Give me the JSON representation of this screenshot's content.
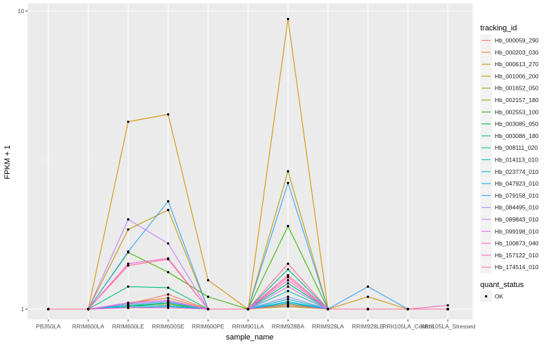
{
  "chart_data": {
    "type": "line",
    "xlabel": "sample_name",
    "ylabel": "FPKM + 1",
    "y_scale": "log10",
    "ylim": [
      1,
      10
    ],
    "y_ticks": [
      1,
      10
    ],
    "grid": true,
    "legend_position": "right",
    "categories": [
      "PB350LA",
      "RRIM600LA",
      "RRIM600LE",
      "RRIM600SE",
      "RRIM600PE",
      "RRIM901LA",
      "RRIM928BA",
      "RRIM928LA",
      "RRIM928LE",
      "RRII105LA_Control",
      "RRII105LA_Stressed"
    ],
    "legend_color": {
      "title": "tracking_id",
      "items": [
        {
          "label": "Hb_000059_290",
          "color": "#F8766D"
        },
        {
          "label": "Hb_000203_030",
          "color": "#EA8331"
        },
        {
          "label": "Hb_000613_270",
          "color": "#D89000"
        },
        {
          "label": "Hb_001006_200",
          "color": "#C09B00"
        },
        {
          "label": "Hb_001652_050",
          "color": "#A3A500"
        },
        {
          "label": "Hb_002157_180",
          "color": "#7CAE00"
        },
        {
          "label": "Hb_002553_100",
          "color": "#39B600"
        },
        {
          "label": "Hb_003085_050",
          "color": "#00BB4E"
        },
        {
          "label": "Hb_003086_180",
          "color": "#00BF7D"
        },
        {
          "label": "Hb_008111_020",
          "color": "#00C1A3"
        },
        {
          "label": "Hb_014113_010",
          "color": "#00BFC4"
        },
        {
          "label": "Hb_023774_010",
          "color": "#00BAE0"
        },
        {
          "label": "Hb_047923_010",
          "color": "#00B0F6"
        },
        {
          "label": "Hb_079158_010",
          "color": "#35A2FF"
        },
        {
          "label": "Hb_084495_010",
          "color": "#9590FF"
        },
        {
          "label": "Hb_089843_010",
          "color": "#C77CFF"
        },
        {
          "label": "Hb_099198_010",
          "color": "#E76BF3"
        },
        {
          "label": "Hb_100873_040",
          "color": "#FA62DB"
        },
        {
          "label": "Hb_157122_010",
          "color": "#FF62BC"
        },
        {
          "label": "Hb_174514_010",
          "color": "#FF6C91"
        }
      ]
    },
    "legend_shape": {
      "title": "quant_status",
      "items": [
        {
          "label": "OK"
        }
      ]
    },
    "series": [
      {
        "name": "Hb_000059_290",
        "color": "#F8766D",
        "values": [
          1,
          1,
          1.04,
          1.12,
          1,
          1,
          1.28,
          1,
          1,
          1,
          1
        ]
      },
      {
        "name": "Hb_000203_030",
        "color": "#EA8331",
        "values": [
          1,
          1,
          1.05,
          1.09,
          1,
          1,
          1.03,
          1,
          1,
          1,
          1
        ]
      },
      {
        "name": "Hb_000613_270",
        "color": "#D89000",
        "values": [
          1,
          1,
          4.25,
          4.5,
          1.25,
          1,
          9.4,
          1,
          1.1,
          1,
          1
        ]
      },
      {
        "name": "Hb_001006_200",
        "color": "#C09B00",
        "values": [
          1,
          1,
          1.85,
          2.15,
          1,
          1,
          2.9,
          1,
          1,
          1,
          1
        ]
      },
      {
        "name": "Hb_001652_050",
        "color": "#A3A500",
        "values": [
          1,
          1,
          1.02,
          1.03,
          1,
          1,
          1.02,
          1,
          1,
          1,
          1
        ]
      },
      {
        "name": "Hb_002157_180",
        "color": "#7CAE00",
        "values": [
          1,
          1,
          1.03,
          1.04,
          1,
          1,
          1.04,
          1,
          1,
          1,
          1
        ]
      },
      {
        "name": "Hb_002553_100",
        "color": "#39B600",
        "values": [
          1,
          1,
          1.55,
          1.33,
          1.1,
          1,
          1.9,
          1,
          1,
          1,
          1
        ]
      },
      {
        "name": "Hb_003085_050",
        "color": "#00BB4E",
        "values": [
          1,
          1,
          1.02,
          1.05,
          1,
          1,
          1.22,
          1,
          1,
          1,
          1
        ]
      },
      {
        "name": "Hb_003086_180",
        "color": "#00BF7D",
        "values": [
          1,
          1,
          1.19,
          1.18,
          1,
          1,
          1.36,
          1,
          1,
          1,
          1
        ]
      },
      {
        "name": "Hb_008111_020",
        "color": "#00C1A3",
        "values": [
          1,
          1,
          1.04,
          1.06,
          1,
          1,
          1.15,
          1,
          1,
          1,
          1
        ]
      },
      {
        "name": "Hb_014113_010",
        "color": "#00BFC4",
        "values": [
          1,
          1,
          1.03,
          1.05,
          1,
          1,
          1.08,
          1,
          1,
          1,
          1
        ]
      },
      {
        "name": "Hb_023774_010",
        "color": "#00BAE0",
        "values": [
          1,
          1,
          1.02,
          1.03,
          1,
          1,
          1.06,
          1,
          1,
          1,
          1
        ]
      },
      {
        "name": "Hb_047923_010",
        "color": "#00B0F6",
        "values": [
          1,
          1,
          1.01,
          1.02,
          1,
          1,
          1.05,
          1,
          1,
          1,
          1
        ]
      },
      {
        "name": "Hb_079158_010",
        "color": "#35A2FF",
        "values": [
          1,
          1,
          1.56,
          2.3,
          1,
          1,
          2.65,
          1,
          1.19,
          1,
          1
        ]
      },
      {
        "name": "Hb_084495_010",
        "color": "#9590FF",
        "values": [
          1,
          1,
          1.04,
          1.06,
          1,
          1,
          1.1,
          1,
          1,
          1,
          1
        ]
      },
      {
        "name": "Hb_089843_010",
        "color": "#C77CFF",
        "values": [
          1,
          1,
          2.0,
          1.66,
          1,
          1,
          1.19,
          1,
          1,
          1,
          1
        ]
      },
      {
        "name": "Hb_099198_010",
        "color": "#E76BF3",
        "values": [
          1,
          1,
          1.05,
          1.07,
          1,
          1,
          1.25,
          1,
          1,
          1,
          1
        ]
      },
      {
        "name": "Hb_100873_040",
        "color": "#FA62DB",
        "values": [
          1,
          1,
          1.42,
          1.48,
          1,
          1,
          1.3,
          1,
          1,
          1,
          1
        ]
      },
      {
        "name": "Hb_157122_010",
        "color": "#FF62BC",
        "values": [
          1,
          1,
          1.01,
          1.01,
          1,
          1,
          1.03,
          1,
          1,
          1,
          1.03
        ]
      },
      {
        "name": "Hb_174514_010",
        "color": "#FF6C91",
        "values": [
          1,
          1,
          1.4,
          1.47,
          1,
          1,
          1.42,
          1,
          1,
          1,
          1
        ]
      }
    ]
  }
}
